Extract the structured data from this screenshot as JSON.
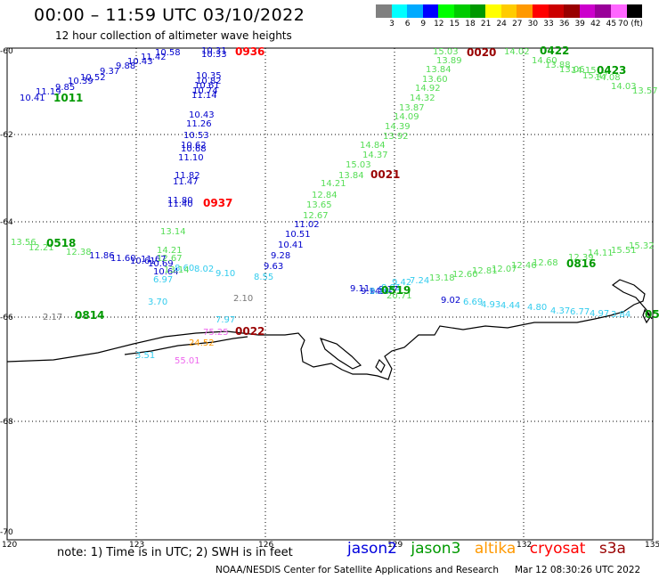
{
  "header": {
    "title": "00:00 – 11:59 UTC 03/10/2022",
    "subtitle": "12 hour collection of altimeter wave heights"
  },
  "scale": {
    "colors": [
      "#808080",
      "#00ffff",
      "#00aaff",
      "#0000ff",
      "#00ff00",
      "#00cc00",
      "#009900",
      "#ffff00",
      "#ffcc00",
      "#ff9900",
      "#ff0000",
      "#cc0000",
      "#990000",
      "#cc00cc",
      "#990099",
      "#ff66ff",
      "#000000"
    ],
    "labels": [
      "3",
      "6",
      "9",
      "12",
      "15",
      "18",
      "21",
      "24",
      "27",
      "30",
      "33",
      "36",
      "39",
      "42",
      "45",
      "70 (ft)"
    ]
  },
  "map": {
    "lon_ticks": [
      "120",
      "123",
      "126",
      "129",
      "132",
      "135"
    ],
    "lat_ticks": [
      "-60",
      "-62",
      "-64",
      "-66",
      "-68",
      "-70"
    ]
  },
  "colors": {
    "jason2": "#0000cc",
    "jason3": "#009900",
    "jason3_light": "#55dd55",
    "altika": "#ff9900",
    "cryosat": "#ff0000",
    "s3a": "#990000",
    "cyan": "#33ccee",
    "gray": "#777777",
    "pink": "#ee66ee"
  },
  "times": {
    "t1011": "1011",
    "t0518": "0518",
    "t0814": "0814",
    "t0936": "0936",
    "t0937": "0937",
    "t0021": "0021",
    "t0022": "0022",
    "t0020": "0020",
    "t0422": "0422",
    "t0423": "0423",
    "t0816": "0816",
    "t0519": "0519",
    "t05": "05"
  },
  "readings": {
    "j2_a": [
      "10.41",
      "11.19",
      "9.85",
      "10.39",
      "10.52",
      "9.37",
      "9.88",
      "10.43",
      "11.42",
      "10.58"
    ],
    "j2_b": [
      "10.31",
      "10.33",
      "10.35",
      "10.82",
      "10.61",
      "10.74",
      "11.14",
      "10.43",
      "11.26",
      "10.53",
      "10.62",
      "10.68",
      "11.10",
      "11.82",
      "11.47",
      "11.80",
      "11.40"
    ],
    "j2_c": [
      "11.86",
      "11.60",
      "10.61",
      "11.67",
      "10.69",
      "10.64"
    ],
    "j2_d": [
      "9.28",
      "9.63",
      "10.41",
      "10.51",
      "11.02"
    ],
    "j2_e": [
      "9.11",
      "9.14",
      "9.18",
      "9.17",
      "9.02"
    ],
    "cy_a": [
      "6.97",
      "8.60",
      "8.02",
      "9.10",
      "3.70",
      "8.55"
    ],
    "cy_b": [
      "8.70",
      "8.91",
      "9.42",
      "7.24",
      "6.69",
      "4.93",
      "4.44",
      "4.80",
      "4.37",
      "6.77",
      "4.97",
      "3.84",
      "7.97",
      "3.51"
    ],
    "j3l_a": [
      "15.03",
      "13.89",
      "13.84",
      "13.60",
      "14.92",
      "14.32",
      "13.87",
      "14.09",
      "14.39",
      "13.92",
      "14.84",
      "14.37",
      "15.03",
      "13.84",
      "14.21",
      "12.84",
      "13.65",
      "12.67",
      "14.02",
      "14.60",
      "13.88",
      "13.06",
      "14.15",
      "15.47",
      "14.08",
      "14.03",
      "13.57"
    ],
    "j3l_b": [
      "13.56",
      "12.21",
      "12.38",
      "14.21",
      "12.67",
      "13.14",
      "13.14"
    ],
    "j3l_c": [
      "13.18",
      "12.60",
      "12.81",
      "12.07",
      "12.46",
      "12.68",
      "12.39",
      "14.11",
      "15.51",
      "15.32",
      "20.71"
    ],
    "gray_vals": [
      "2.17",
      "2.10"
    ],
    "orange_vals": [
      "24.52"
    ],
    "pink_vals": [
      "55.01",
      "75.25"
    ]
  },
  "footer": {
    "note": "note:  1) Time is in UTC;  2) SWH is in feet",
    "source": "NOAA/NESDIS Center for Satellite Applications and Research",
    "timestamp": "Mar 12 08:30:26 UTC 2022"
  },
  "satellites": [
    "jason2",
    "jason3",
    "altika",
    "cryosat",
    "s3a"
  ]
}
